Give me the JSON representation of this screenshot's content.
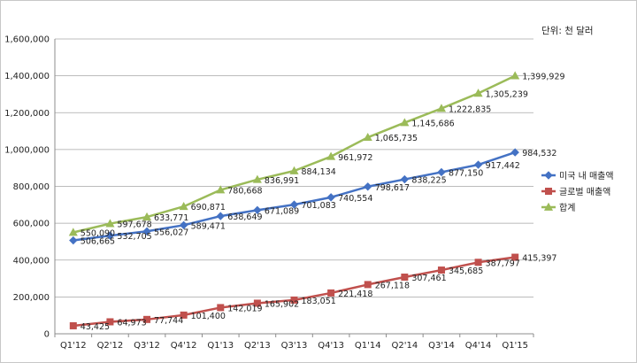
{
  "chart_data": {
    "type": "line",
    "unit_label": "단위: 천 달러",
    "categories": [
      "Q1'12",
      "Q2'12",
      "Q3'12",
      "Q4'12",
      "Q1'13",
      "Q2'13",
      "Q3'13",
      "Q4'13",
      "Q1'14",
      "Q2'14",
      "Q3'14",
      "Q4'14",
      "Q1'15"
    ],
    "ylim": [
      0,
      1600000
    ],
    "yticks": [
      0,
      200000,
      400000,
      600000,
      800000,
      1000000,
      1200000,
      1400000,
      1600000
    ],
    "ytick_labels": [
      "0",
      "200,000",
      "400,000",
      "600,000",
      "800,000",
      "1,000,000",
      "1,200,000",
      "1,400,000",
      "1,600,000"
    ],
    "grid": true,
    "legend_position": "right",
    "series": [
      {
        "name": "미국 내 매출액",
        "color": "#4472c4",
        "marker": "diamond",
        "values": [
          506665,
          532705,
          556027,
          589471,
          638649,
          671089,
          701083,
          740554,
          798617,
          838225,
          877150,
          917442,
          984532
        ],
        "labels": [
          "506,665",
          "532,705",
          "556,027",
          "589,471",
          "638,649",
          "671,089",
          "701,083",
          "740,554",
          "798,617",
          "838,225",
          "877,150",
          "917,442",
          "984,532"
        ]
      },
      {
        "name": "글로벌 매출액",
        "color": "#c0504d",
        "marker": "square",
        "values": [
          43425,
          64973,
          77744,
          101400,
          142019,
          165902,
          183051,
          221418,
          267118,
          307461,
          345685,
          387797,
          415397
        ],
        "labels": [
          "43,425",
          "64,973",
          "77,744",
          "101,400",
          "142,019",
          "165,902",
          "183,051",
          "221,418",
          "267,118",
          "307,461",
          "345,685",
          "387,797",
          "415,397"
        ]
      },
      {
        "name": "합계",
        "color": "#9bbb59",
        "marker": "triangle",
        "values": [
          550090,
          597678,
          633771,
          690871,
          780668,
          836991,
          884134,
          961972,
          1065735,
          1145686,
          1222835,
          1305239,
          1399929
        ],
        "labels": [
          "550,090",
          "597,678",
          "633,771",
          "690,871",
          "780,668",
          "836,991",
          "884,134",
          "961,972",
          "1,065,735",
          "1,145,686",
          "1,222,835",
          "1,305,239",
          "1,399,929"
        ]
      }
    ]
  }
}
